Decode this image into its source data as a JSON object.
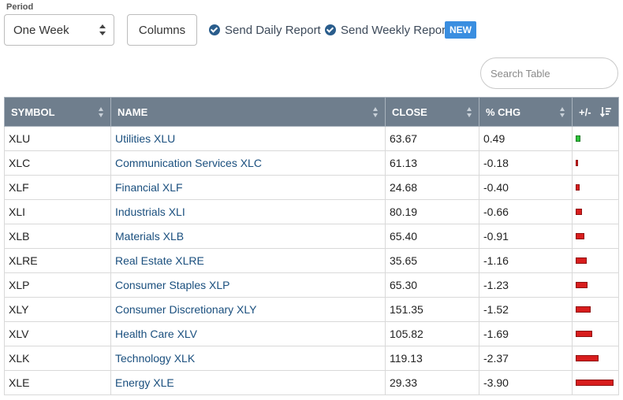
{
  "controls": {
    "period_label": "Period",
    "period_value": "One Week",
    "columns_label": "Columns",
    "daily_report_label": "Send Daily Report",
    "weekly_report_label": "Send Weekly Report",
    "new_badge": "NEW",
    "search_placeholder": "Search Table"
  },
  "table": {
    "headers": {
      "symbol": "SYMBOL",
      "name": "NAME",
      "close": "CLOSE",
      "chg": "% CHG",
      "bar": "+/-"
    },
    "rows": [
      {
        "symbol": "XLU",
        "name": "Utilities XLU",
        "close": "63.67",
        "chg": "0.49",
        "pct": 0.49
      },
      {
        "symbol": "XLC",
        "name": "Communication Services XLC",
        "close": "61.13",
        "chg": "-0.18",
        "pct": -0.18
      },
      {
        "symbol": "XLF",
        "name": "Financial XLF",
        "close": "24.68",
        "chg": "-0.40",
        "pct": -0.4
      },
      {
        "symbol": "XLI",
        "name": "Industrials XLI",
        "close": "80.19",
        "chg": "-0.66",
        "pct": -0.66
      },
      {
        "symbol": "XLB",
        "name": "Materials XLB",
        "close": "65.40",
        "chg": "-0.91",
        "pct": -0.91
      },
      {
        "symbol": "XLRE",
        "name": "Real Estate XLRE",
        "close": "35.65",
        "chg": "-1.16",
        "pct": -1.16
      },
      {
        "symbol": "XLP",
        "name": "Consumer Staples XLP",
        "close": "65.30",
        "chg": "-1.23",
        "pct": -1.23
      },
      {
        "symbol": "XLY",
        "name": "Consumer Discretionary XLY",
        "close": "151.35",
        "chg": "-1.52",
        "pct": -1.52
      },
      {
        "symbol": "XLV",
        "name": "Health Care XLV",
        "close": "105.82",
        "chg": "-1.69",
        "pct": -1.69
      },
      {
        "symbol": "XLK",
        "name": "Technology XLK",
        "close": "119.13",
        "chg": "-2.37",
        "pct": -2.37
      },
      {
        "symbol": "XLE",
        "name": "Energy XLE",
        "close": "29.33",
        "chg": "-3.90",
        "pct": -3.9
      }
    ]
  },
  "colors": {
    "header_bg": "#6f7e8d",
    "link": "#1a4f7e",
    "positive_bar": "#2ec43a",
    "negative_bar": "#d81d1d",
    "badge": "#3a8ee0"
  }
}
